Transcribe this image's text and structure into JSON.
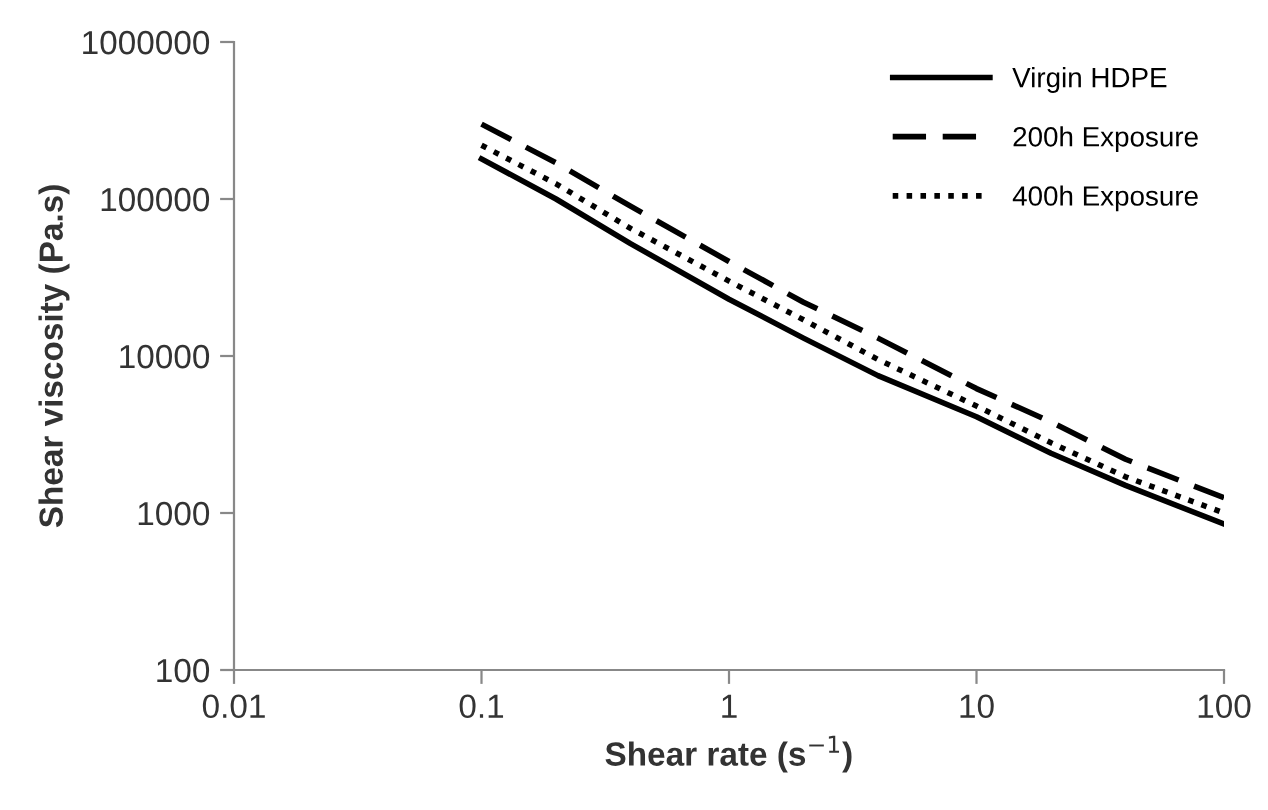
{
  "chart_data": {
    "type": "line",
    "xlabel": "Shear rate (s$^{−1}$)",
    "ylabel": "Shear viscosity (Pa.s)",
    "log": "xy",
    "xlim": [
      0.01,
      100
    ],
    "ylim": [
      100,
      1000000
    ],
    "xticks": [
      0.01,
      0.1,
      1,
      10,
      100
    ],
    "yticks": [
      100,
      1000,
      10000,
      100000,
      1000000
    ],
    "grid": false,
    "legend": "top right",
    "marker": "none",
    "x": [
      0.1,
      0.2,
      0.4,
      1,
      2,
      4,
      10,
      20,
      40,
      100
    ],
    "series": [
      {
        "name": "Virgin HDPE",
        "color": "#000000",
        "line_style": "solid",
        "values": [
          180000,
          100000,
          52000,
          23000,
          13000,
          7500,
          4100,
          2400,
          1500,
          850
        ]
      },
      {
        "name": "200h Exposure",
        "color": "#000000",
        "line_style": "dashed",
        "values": [
          300000,
          170000,
          90000,
          40000,
          22000,
          13000,
          6200,
          3800,
          2200,
          1250
        ]
      },
      {
        "name": "400h Exposure",
        "color": "#000000",
        "line_style": "dotted",
        "values": [
          220000,
          125000,
          65000,
          30000,
          17000,
          9500,
          4800,
          2800,
          1700,
          1000
        ]
      }
    ]
  }
}
